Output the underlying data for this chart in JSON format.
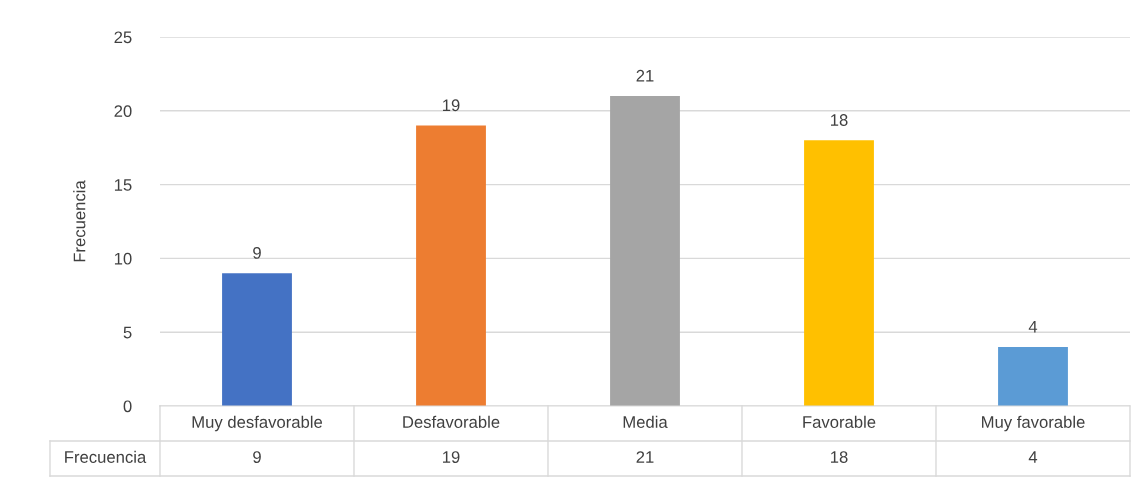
{
  "chart_data": {
    "type": "bar",
    "ylabel": "Frecuencia",
    "categories": [
      "Muy desfavorable",
      "Desfavorable",
      "Media",
      "Favorable",
      "Muy favorable"
    ],
    "series": [
      {
        "name": "Frecuencia",
        "colors": [
          "#4472c4",
          "#ed7d31",
          "#a5a5a5",
          "#ffc000",
          "#5b9bd5"
        ],
        "values": [
          9,
          19,
          21,
          18,
          4
        ],
        "value_labels": [
          "9",
          "19",
          "21",
          "18",
          "4"
        ]
      }
    ],
    "ylim": [
      0,
      25
    ],
    "yticks": [
      0,
      5,
      10,
      15,
      20,
      25
    ],
    "grid": "y",
    "annotations": [
      "9",
      "19",
      "21",
      "18",
      "4"
    ],
    "legend": false
  }
}
